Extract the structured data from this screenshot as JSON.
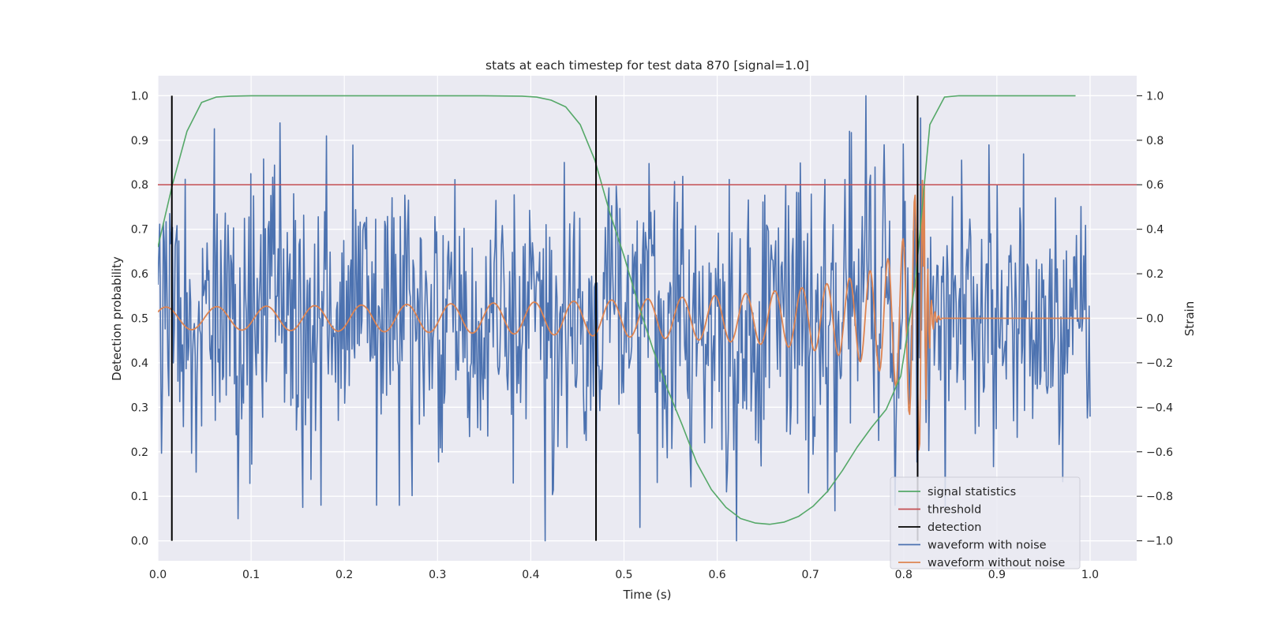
{
  "chart_data": {
    "type": "line",
    "title": "stats at each timestep for test data 870 [signal=1.0]",
    "xlabel": "Time (s)",
    "ylabel_left": "Detection probability",
    "ylabel_right": "Strain",
    "xlim": [
      0.0,
      1.05
    ],
    "ylim_left": [
      -0.045,
      1.045
    ],
    "ylim_right": [
      -1.09,
      1.09
    ],
    "xticks": [
      "0.0",
      "0.1",
      "0.2",
      "0.3",
      "0.4",
      "0.5",
      "0.6",
      "0.7",
      "0.8",
      "0.9",
      "1.0"
    ],
    "yticks_left": [
      "0.0",
      "0.1",
      "0.2",
      "0.3",
      "0.4",
      "0.5",
      "0.6",
      "0.7",
      "0.8",
      "0.9",
      "1.0"
    ],
    "yticks_right": [
      "−1.0",
      "−0.8",
      "−0.6",
      "−0.4",
      "−0.2",
      "0.0",
      "0.2",
      "0.4",
      "0.6",
      "0.8",
      "1.0"
    ],
    "grid": true,
    "legend_position": "bottom-right",
    "colors": {
      "signal_statistics": "#55a868",
      "threshold": "#c44e52",
      "detection": "#000000",
      "noise": "#4c72b0",
      "clean": "#dd8452",
      "background": "#eaeaf2"
    },
    "series": [
      {
        "name": "signal statistics",
        "axis": "left",
        "x": [
          0.0,
          0.0156,
          0.0312,
          0.0469,
          0.0625,
          0.0781,
          0.1,
          0.2,
          0.3,
          0.35,
          0.3906,
          0.4062,
          0.4219,
          0.4375,
          0.4531,
          0.4688,
          0.4844,
          0.5,
          0.5156,
          0.5312,
          0.5469,
          0.5625,
          0.5781,
          0.5938,
          0.6094,
          0.625,
          0.6406,
          0.6562,
          0.6719,
          0.6875,
          0.7031,
          0.7188,
          0.7344,
          0.75,
          0.7656,
          0.7812,
          0.7969,
          0.8125,
          0.8281,
          0.8438,
          0.8594,
          0.9,
          0.95,
          0.9844
        ],
        "y": [
          0.66,
          0.8,
          0.92,
          0.985,
          0.997,
          0.999,
          1.0,
          1.0,
          1.0,
          1.0,
          0.999,
          0.997,
          0.99,
          0.975,
          0.935,
          0.855,
          0.74,
          0.64,
          0.53,
          0.43,
          0.34,
          0.26,
          0.175,
          0.115,
          0.075,
          0.05,
          0.04,
          0.037,
          0.042,
          0.055,
          0.078,
          0.112,
          0.158,
          0.21,
          0.255,
          0.295,
          0.37,
          0.58,
          0.935,
          0.997,
          1.0,
          1.0,
          1.0,
          1.0
        ]
      },
      {
        "name": "threshold",
        "axis": "left",
        "x": [
          0.0,
          1.05
        ],
        "y": [
          0.8,
          0.8
        ]
      },
      {
        "name": "detection",
        "axis": "left",
        "type": "vlines",
        "x": [
          0.015,
          0.47,
          0.815
        ],
        "ymin": 0.0,
        "ymax": 1.0
      },
      {
        "name": "waveform with noise",
        "axis": "right",
        "x_range": [
          0.0,
          1.0
        ],
        "points": 1024,
        "noise_std": 0.32,
        "peaks": [
          {
            "x": 0.1,
            "y": 0.65
          },
          {
            "x": 0.155,
            "y": -0.85
          },
          {
            "x": 0.175,
            "y": -0.84
          },
          {
            "x": 0.235,
            "y": -0.84
          },
          {
            "x": 0.415,
            "y": -1.0
          },
          {
            "x": 0.517,
            "y": -0.94
          },
          {
            "x": 0.61,
            "y": -0.78
          },
          {
            "x": 0.76,
            "y": 1.0
          },
          {
            "x": 0.818,
            "y": 0.9
          }
        ]
      },
      {
        "name": "waveform without noise",
        "axis": "right",
        "x_range": [
          0.0,
          1.0
        ],
        "start_frequency_hz": 18,
        "start_amplitude": 0.05,
        "merger_time": 0.822,
        "peak_amplitude": 0.62,
        "ringdown_end": 0.84,
        "flat_value": 0.0
      }
    ]
  }
}
